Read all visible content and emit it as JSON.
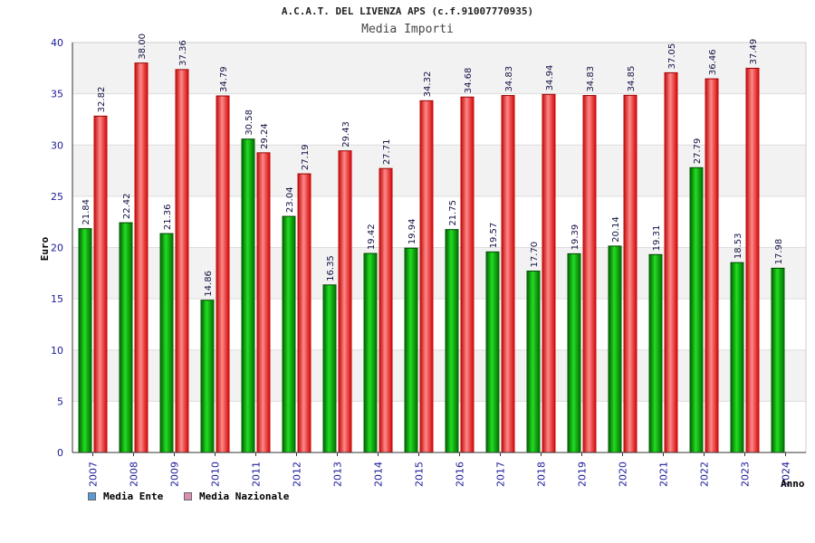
{
  "chart_data": {
    "type": "bar",
    "title": "A.C.A.T. DEL LIVENZA APS (c.f.91007770935)",
    "subtitle": "Media Importi",
    "xlabel": "Anno",
    "ylabel": "Euro",
    "ylim": [
      0,
      40
    ],
    "yticks": [
      0,
      5,
      10,
      15,
      20,
      25,
      30,
      35,
      40
    ],
    "grid": true,
    "legend_position": "bottom-left",
    "categories": [
      "2007",
      "2008",
      "2009",
      "2010",
      "2011",
      "2012",
      "2013",
      "2014",
      "2015",
      "2016",
      "2017",
      "2018",
      "2019",
      "2020",
      "2021",
      "2022",
      "2023",
      "2024"
    ],
    "series": [
      {
        "name": "Media Ente",
        "color": "#00aa00",
        "legend_color": "#5b9bd5",
        "values": [
          21.84,
          22.42,
          21.36,
          14.86,
          30.58,
          23.04,
          16.35,
          19.42,
          19.94,
          21.75,
          19.57,
          17.7,
          19.39,
          20.14,
          19.31,
          27.79,
          18.53,
          17.98
        ],
        "labels": [
          "21.84",
          "22.42",
          "21.36",
          "14.86",
          "30.58",
          "23.04",
          "16.35",
          "19.42",
          "19.94",
          "21.75",
          "19.57",
          "17.70",
          "19.39",
          "20.14",
          "19.31",
          "27.79",
          "18.53",
          "17.98"
        ]
      },
      {
        "name": "Media Nazionale",
        "color": "#ee1111",
        "legend_color": "#d98fb0",
        "values": [
          32.82,
          38.0,
          37.36,
          34.79,
          29.24,
          27.19,
          29.43,
          27.71,
          34.32,
          34.68,
          34.83,
          34.94,
          34.83,
          34.85,
          37.05,
          36.46,
          37.49,
          null
        ],
        "labels": [
          "32.82",
          "38.00",
          "37.36",
          "34.79",
          "29.24",
          "27.19",
          "29.43",
          "27.71",
          "34.32",
          "34.68",
          "34.83",
          "34.94",
          "34.83",
          "34.85",
          "37.05",
          "36.46",
          "37.49",
          ""
        ]
      }
    ]
  }
}
